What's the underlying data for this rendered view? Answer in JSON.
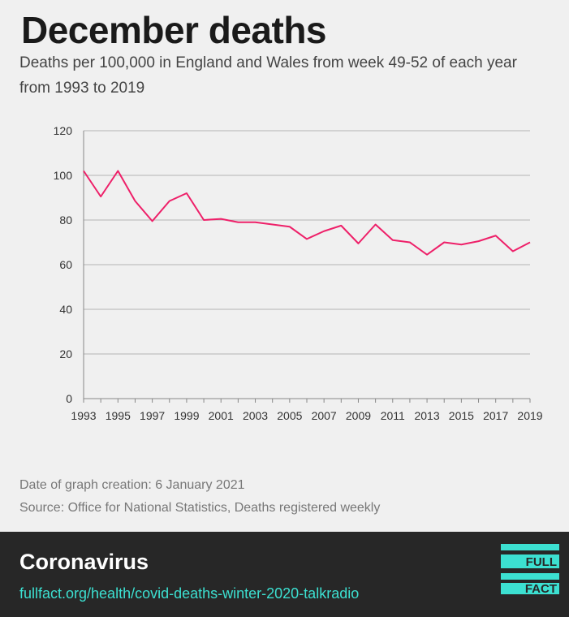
{
  "header": {
    "title": "December deaths",
    "subtitle": "Deaths per 100,000 in England and Wales from week 49-52 of each year from 1993 to 2019"
  },
  "chart_data": {
    "type": "line",
    "title": "December deaths",
    "xlabel": "",
    "ylabel": "",
    "x": [
      1993,
      1994,
      1995,
      1996,
      1997,
      1998,
      1999,
      2000,
      2001,
      2002,
      2003,
      2004,
      2005,
      2006,
      2007,
      2008,
      2009,
      2010,
      2011,
      2012,
      2013,
      2014,
      2015,
      2016,
      2017,
      2018,
      2019
    ],
    "series": [
      {
        "values": [
          102,
          90.5,
          102,
          88.5,
          79.5,
          88.5,
          92,
          80,
          80.5,
          79,
          79,
          78,
          77,
          71.5,
          75,
          77.5,
          69.5,
          78,
          71,
          70,
          64.5,
          70,
          69,
          70.5,
          73,
          66,
          70
        ]
      }
    ],
    "xlim": [
      1993,
      2019
    ],
    "ylim": [
      0,
      120
    ],
    "y_ticks": [
      0,
      20,
      40,
      60,
      80,
      100,
      120
    ],
    "x_ticks": [
      1993,
      1995,
      1997,
      1999,
      2001,
      2003,
      2005,
      2007,
      2009,
      2011,
      2013,
      2015,
      2017,
      2019
    ],
    "grid": true,
    "line_color": "#ee2069",
    "grid_color": "#b5b5b5"
  },
  "meta": {
    "created": "Date of graph creation: 6 January 2021",
    "source": "Source: Office for National Statistics, Deaths registered weekly"
  },
  "footer": {
    "topic": "Coronavirus",
    "url": "fullfact.org/health/covid-deaths-winter-2020-talkradio",
    "logo_text_1": "FULL",
    "logo_text_2": "FACT",
    "logo_color": "#3ce0d1"
  }
}
